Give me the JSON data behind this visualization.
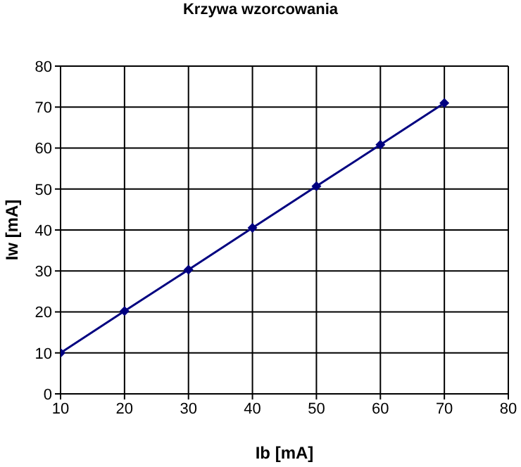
{
  "chart_data": {
    "type": "line",
    "title": "Krzywa wzorcowania",
    "xlabel": "Ib [mA]",
    "ylabel": "Iw [mA]",
    "x": [
      10,
      20,
      30,
      40,
      50,
      60,
      70
    ],
    "series": [
      {
        "color": "#000080",
        "values": [
          10,
          20.2,
          30.3,
          40.5,
          50.7,
          60.8,
          71
        ]
      }
    ],
    "xlim": [
      10,
      80
    ],
    "xticks": [
      10,
      20,
      30,
      40,
      50,
      60,
      70,
      80
    ],
    "ylim": [
      0,
      80
    ],
    "yticks": [
      0,
      10,
      20,
      30,
      40,
      50,
      60,
      70,
      80
    ],
    "grid": true,
    "legend": false,
    "marker": "diamond",
    "line_style": "solid"
  }
}
